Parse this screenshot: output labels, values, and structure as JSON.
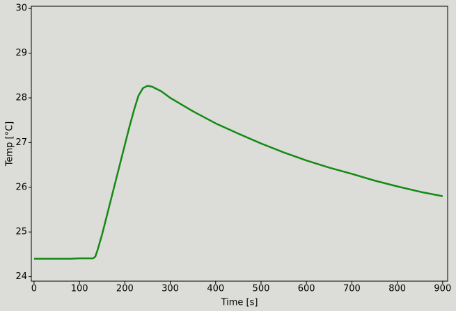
{
  "chart_data": {
    "type": "line",
    "xlabel": "Time [s]",
    "ylabel": "Temp [°C]",
    "x": [
      0,
      20,
      40,
      60,
      80,
      100,
      120,
      130,
      135,
      140,
      150,
      160,
      170,
      180,
      190,
      200,
      210,
      220,
      230,
      240,
      250,
      260,
      280,
      300,
      350,
      400,
      450,
      500,
      550,
      600,
      650,
      700,
      750,
      800,
      850,
      900
    ],
    "series": [
      {
        "color": "#138a13",
        "values": [
          24.4,
          24.4,
          24.4,
          24.4,
          24.4,
          24.41,
          24.41,
          24.41,
          24.45,
          24.6,
          24.95,
          25.35,
          25.75,
          26.15,
          26.55,
          26.95,
          27.35,
          27.72,
          28.05,
          28.22,
          28.27,
          28.25,
          28.15,
          28.0,
          27.7,
          27.43,
          27.2,
          26.98,
          26.78,
          26.6,
          26.44,
          26.3,
          26.15,
          26.02,
          25.9,
          25.8
        ]
      }
    ],
    "xlim": [
      -6,
      911
    ],
    "ylim": [
      23.9,
      30.05
    ],
    "xticks": [
      0,
      100,
      200,
      300,
      400,
      500,
      600,
      700,
      800,
      900
    ],
    "yticks": [
      24,
      25,
      26,
      27,
      28,
      29,
      30
    ]
  }
}
